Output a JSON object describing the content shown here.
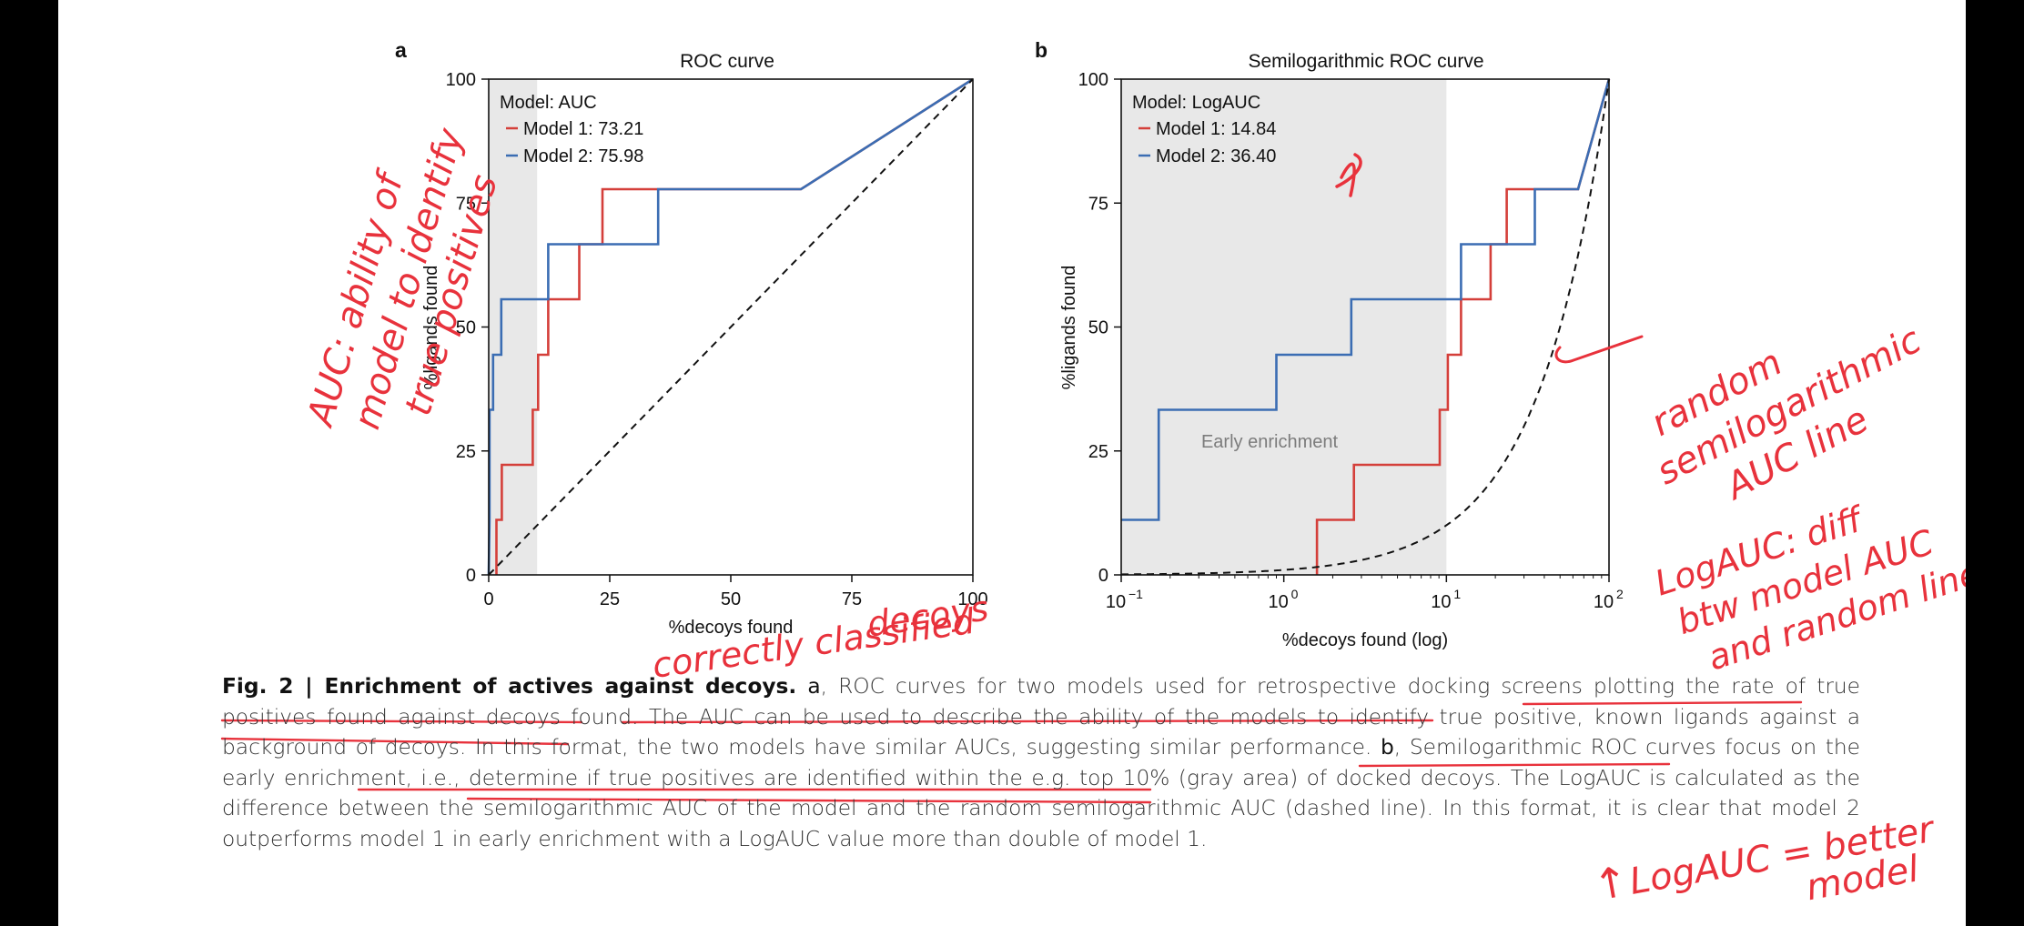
{
  "colors": {
    "model1": "#d43f3a",
    "model2": "#3b6db3",
    "random": "#111111",
    "shade": "#e8e8e8",
    "annotation": "#e8323c"
  },
  "panel_a": {
    "letter": "a",
    "title": "ROC curve",
    "ylabel": "%ligands found",
    "xlabel": "%decoys found",
    "xticks": [
      "0",
      "25",
      "50",
      "75",
      "100"
    ],
    "yticks": [
      "0",
      "25",
      "50",
      "75",
      "100"
    ],
    "legend_title": "Model: AUC",
    "legend_items": [
      "Model 1: 73.21",
      "Model 2: 75.98"
    ]
  },
  "panel_b": {
    "letter": "b",
    "title": "Semilogarithmic ROC curve",
    "ylabel": "%ligands found",
    "xlabel": "%decoys found (log)",
    "xtick_bases": [
      "10",
      "10",
      "10",
      "10"
    ],
    "xtick_exps": [
      "−1",
      "0",
      "1",
      "2"
    ],
    "yticks": [
      "0",
      "25",
      "50",
      "75",
      "100"
    ],
    "legend_title": "Model: LogAUC",
    "legend_items": [
      "Model 1: 14.84",
      "Model 2: 36.40"
    ],
    "shade_label": "Early enrichment"
  },
  "chart_data": [
    {
      "type": "line",
      "title": "ROC curve",
      "xlabel": "%decoys found",
      "ylabel": "%ligands found",
      "xlim": [
        0,
        100
      ],
      "ylim": [
        0,
        100
      ],
      "shaded_region_x": [
        0,
        10
      ],
      "legend": "top-left",
      "series": [
        {
          "name": "Model 1: 73.21",
          "color": "#d43f3a",
          "x": [
            1.6,
            1.6,
            2.7,
            2.7,
            9.1,
            9.1,
            10.2,
            10.2,
            12.3,
            12.3,
            18.7,
            18.7,
            23.5,
            23.5,
            64.5,
            100
          ],
          "y": [
            0,
            11.1,
            11.1,
            22.2,
            22.2,
            33.3,
            33.3,
            44.4,
            44.4,
            55.6,
            55.6,
            66.7,
            66.7,
            77.8,
            77.8,
            100
          ]
        },
        {
          "name": "Model 2: 75.98",
          "color": "#3b6db3",
          "x": [
            0,
            0.17,
            0.17,
            0.9,
            0.9,
            2.6,
            2.6,
            12.3,
            12.3,
            35,
            35,
            64.5,
            100
          ],
          "y": [
            0,
            11.1,
            33.3,
            33.3,
            44.4,
            44.4,
            55.6,
            55.6,
            66.7,
            66.7,
            77.8,
            77.8,
            100
          ]
        },
        {
          "name": "",
          "style": "dashed",
          "color": "#111111",
          "x": [
            0,
            100
          ],
          "y": [
            0,
            100
          ]
        }
      ]
    },
    {
      "type": "line",
      "title": "Semilogarithmic ROC curve",
      "xlabel": "%decoys found (log)",
      "ylabel": "%ligands found",
      "xscale": "log",
      "xlim": [
        0.1,
        100
      ],
      "ylim": [
        0,
        100
      ],
      "shaded_region_x": [
        0.1,
        10
      ],
      "legend": "top-left",
      "series": [
        {
          "name": "Model 1: 14.84",
          "color": "#d43f3a",
          "x": [
            1.6,
            1.6,
            2.7,
            2.7,
            9.1,
            9.1,
            10.2,
            10.2,
            12.3,
            12.3,
            18.7,
            18.7,
            23.5,
            23.5,
            64.5,
            100
          ],
          "y": [
            0,
            11.1,
            11.1,
            22.2,
            22.2,
            33.3,
            33.3,
            44.4,
            44.4,
            55.6,
            55.6,
            66.7,
            66.7,
            77.8,
            77.8,
            100
          ]
        },
        {
          "name": "Model 2: 36.40",
          "color": "#3b6db3",
          "x": [
            0.1,
            0.17,
            0.17,
            0.9,
            0.9,
            2.6,
            2.6,
            12.3,
            12.3,
            35,
            35,
            64.5,
            100
          ],
          "y": [
            11.1,
            11.1,
            33.3,
            33.3,
            44.4,
            44.4,
            55.6,
            55.6,
            66.7,
            66.7,
            77.8,
            77.8,
            100
          ]
        },
        {
          "name": "",
          "style": "dashed",
          "color": "#111111",
          "x": [
            0.1,
            100
          ],
          "y": [
            0,
            100
          ],
          "curve": "y = x on log axis"
        }
      ]
    }
  ],
  "caption": {
    "label": "Fig. 2 | Enrichment of actives against decoys.",
    "a_letter": "a",
    "text_a": ", ROC curves for two models used for retrospective docking screens plotting the rate of true positives found against decoys found. The AUC can be used to describe the ability of the models to identify true positive, known ligands against a background of decoys. In this format, the two models have similar AUCs, suggesting similar performance. ",
    "b_letter": "b",
    "text_b": ", Semilogarithmic ROC curves focus on the early enrichment, i.e., determine if true positives are identified within the e.g. top 10% (gray area) of docked decoys. The LogAUC is calculated as the difference between the semilogarithmic AUC of the model and the random semilogarithmic AUC (dashed line). In this format, it is clear that model 2 outperforms model 1 in early enrichment with a LogAUC value more than double of model 1."
  },
  "handwriting": {
    "left_note": [
      "AUC: ability of",
      "model to identify",
      "true positives"
    ],
    "below_note": [
      "correctly classified",
      "decoys"
    ],
    "right_note": [
      "random",
      "semilogarithmic",
      "AUC line"
    ],
    "right_note2": [
      "LogAUC: diff",
      "btw model AUC",
      "and random line"
    ],
    "bottom_note": [
      "LogAUC = better",
      "model"
    ],
    "arrow_up": "↑"
  }
}
